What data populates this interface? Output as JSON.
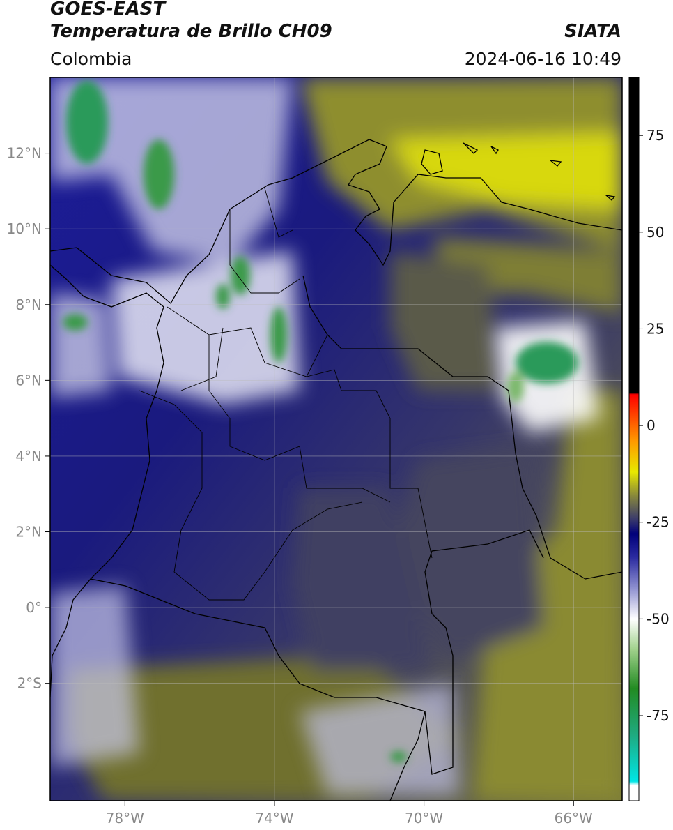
{
  "header": {
    "title_line1": "GOES-EAST",
    "title_line2": "Temperatura de Brillo CH09",
    "brand": "SIATA",
    "region": "Colombia",
    "timestamp": "2024-06-16 10:49"
  },
  "map": {
    "lon_range": [
      -80.0,
      -64.7
    ],
    "lat_range": [
      -5.1,
      14.0
    ],
    "lon_ticks": [
      {
        "value": -78,
        "label": "78°W"
      },
      {
        "value": -74,
        "label": "74°W"
      },
      {
        "value": -70,
        "label": "70°W"
      },
      {
        "value": -66,
        "label": "66°W"
      }
    ],
    "lat_ticks": [
      {
        "value": 12,
        "label": "12°N"
      },
      {
        "value": 10,
        "label": "10°N"
      },
      {
        "value": 8,
        "label": "8°N"
      },
      {
        "value": 6,
        "label": "6°N"
      },
      {
        "value": 4,
        "label": "4°N"
      },
      {
        "value": 2,
        "label": "2°N"
      },
      {
        "value": 0,
        "label": "0°"
      },
      {
        "value": -2,
        "label": "2°S"
      }
    ]
  },
  "colorbar": {
    "range": [
      -97,
      90
    ],
    "ticks": [
      {
        "value": 75,
        "label": "75"
      },
      {
        "value": 50,
        "label": "50"
      },
      {
        "value": 25,
        "label": "25"
      },
      {
        "value": 0,
        "label": "0"
      },
      {
        "value": -25,
        "label": "-25"
      },
      {
        "value": -50,
        "label": "-50"
      },
      {
        "value": -75,
        "label": "-75"
      }
    ],
    "stops": [
      {
        "value": -97,
        "color": "#ffffff"
      },
      {
        "value": -93,
        "color": "#ffffff"
      },
      {
        "value": -92,
        "color": "#00e5e5"
      },
      {
        "value": -80,
        "color": "#1faa80"
      },
      {
        "value": -68,
        "color": "#228b22"
      },
      {
        "value": -58,
        "color": "#9fd08a"
      },
      {
        "value": -50,
        "color": "#ffffff"
      },
      {
        "value": -42,
        "color": "#8e90d0"
      },
      {
        "value": -34,
        "color": "#2a2aa0"
      },
      {
        "value": -28,
        "color": "#00007a"
      },
      {
        "value": -24,
        "color": "#3d3d6a"
      },
      {
        "value": -18,
        "color": "#8a8a3a"
      },
      {
        "value": -12,
        "color": "#e8e800"
      },
      {
        "value": -4,
        "color": "#ff9900"
      },
      {
        "value": 8,
        "color": "#ff0000"
      },
      {
        "value": 8.5,
        "color": "#000000"
      },
      {
        "value": 90,
        "color": "#000000"
      }
    ]
  }
}
